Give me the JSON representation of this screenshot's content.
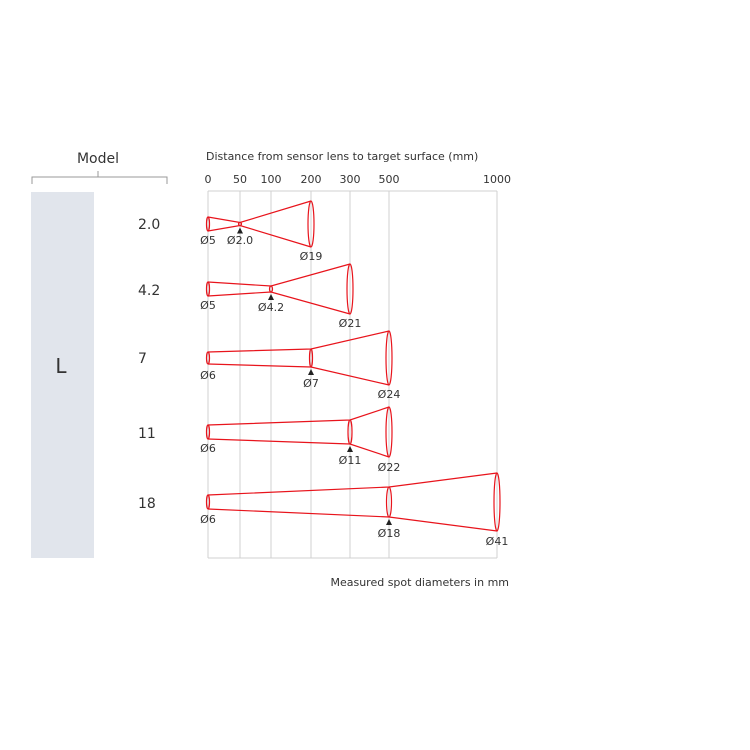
{
  "model_header": "Model",
  "series_label": "L",
  "axis_title": "Distance from sensor lens to target surface (mm)",
  "axis_ticks": [
    0,
    50,
    100,
    200,
    300,
    500,
    1000
  ],
  "footnote": "Measured spot diameters in mm",
  "colors": {
    "beam": "#e8141c",
    "panel": "#e1e5ec",
    "grid": "#d0d0d0"
  },
  "models": [
    {
      "name": "2.0",
      "spots": [
        {
          "distance": 0,
          "label": "Ø5"
        },
        {
          "distance": 50,
          "label": "Ø2.0",
          "focus": true
        },
        {
          "distance": 200,
          "label": "Ø19"
        }
      ]
    },
    {
      "name": "4.2",
      "spots": [
        {
          "distance": 0,
          "label": "Ø5"
        },
        {
          "distance": 100,
          "label": "Ø4.2",
          "focus": true
        },
        {
          "distance": 300,
          "label": "Ø21"
        }
      ]
    },
    {
      "name": "7",
      "spots": [
        {
          "distance": 0,
          "label": "Ø6"
        },
        {
          "distance": 200,
          "label": "Ø7",
          "focus": true
        },
        {
          "distance": 500,
          "label": "Ø24"
        }
      ]
    },
    {
      "name": "11",
      "spots": [
        {
          "distance": 0,
          "label": "Ø6"
        },
        {
          "distance": 300,
          "label": "Ø11",
          "focus": true
        },
        {
          "distance": 500,
          "label": "Ø22"
        }
      ]
    },
    {
      "name": "18",
      "spots": [
        {
          "distance": 0,
          "label": "Ø6"
        },
        {
          "distance": 500,
          "label": "Ø18",
          "focus": true
        },
        {
          "distance": 1000,
          "label": "Ø41"
        }
      ]
    }
  ]
}
